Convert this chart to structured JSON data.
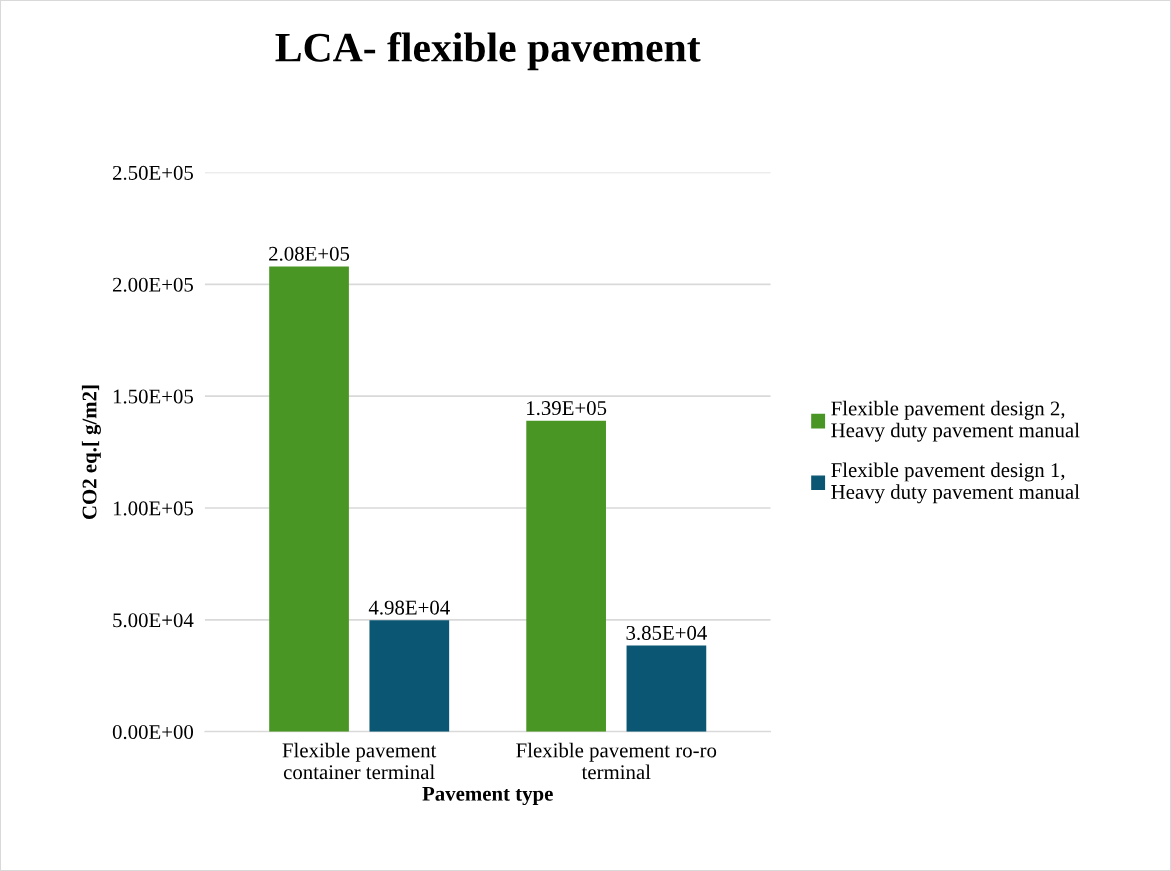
{
  "chart_data": {
    "type": "bar",
    "title": "LCA- flexible pavement",
    "xlabel": "Pavement type",
    "ylabel": "CO2 eq.[ g/m2]",
    "categories": [
      "Flexible pavement\ncontainer terminal",
      "Flexible pavement ro-ro\nterminal"
    ],
    "series": [
      {
        "name": "Flexible pavement design 2,\nHeavy duty pavement manual",
        "color": "#4a9625",
        "values": [
          208000,
          139000
        ],
        "value_labels": [
          "2.08E+05",
          "1.39E+05"
        ]
      },
      {
        "name": "Flexible pavement design 1,\nHeavy duty pavement manual",
        "color": "#0a5673",
        "values": [
          49800,
          38500
        ],
        "value_labels": [
          "4.98E+04",
          "3.85E+04"
        ]
      }
    ],
    "ylim": [
      0,
      250000
    ],
    "yticks": [
      {
        "value": 0,
        "label": "0.00E+00"
      },
      {
        "value": 50000,
        "label": "5.00E+04"
      },
      {
        "value": 100000,
        "label": "1.00E+05"
      },
      {
        "value": 150000,
        "label": "1.50E+05"
      },
      {
        "value": 200000,
        "label": "2.00E+05"
      },
      {
        "value": 250000,
        "label": "2.50E+05"
      }
    ],
    "grid": "y",
    "legend": "right"
  }
}
